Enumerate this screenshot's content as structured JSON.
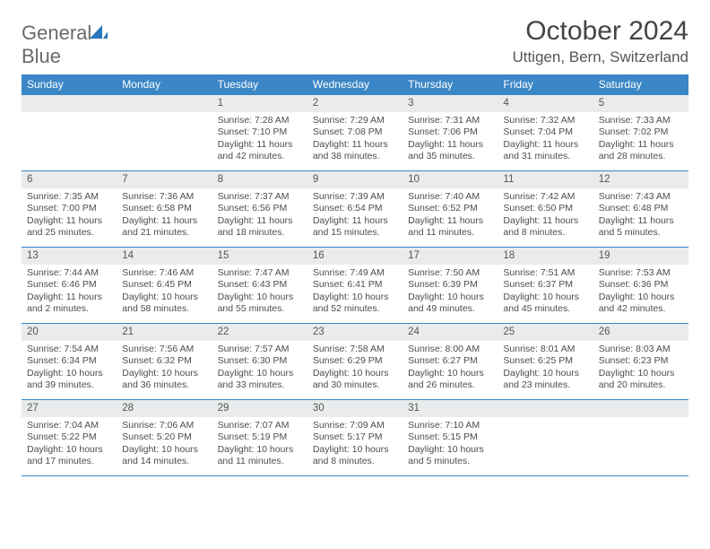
{
  "brand": {
    "part1": "General",
    "part2": "Blue"
  },
  "title": "October 2024",
  "location": "Uttigen, Bern, Switzerland",
  "colors": {
    "header_bg": "#3b86c6",
    "header_text": "#ffffff",
    "grid_line": "#3b86c6",
    "daynum_bg": "#e9ebec",
    "body_text": "#4d4d4d",
    "page_bg": "#ffffff",
    "logo_gray": "#6a6a6a",
    "logo_blue": "#2a77bb"
  },
  "dow": [
    "Sunday",
    "Monday",
    "Tuesday",
    "Wednesday",
    "Thursday",
    "Friday",
    "Saturday"
  ],
  "weeks": [
    [
      null,
      null,
      {
        "n": "1",
        "sunrise": "Sunrise: 7:28 AM",
        "sunset": "Sunset: 7:10 PM",
        "day1": "Daylight: 11 hours",
        "day2": "and 42 minutes."
      },
      {
        "n": "2",
        "sunrise": "Sunrise: 7:29 AM",
        "sunset": "Sunset: 7:08 PM",
        "day1": "Daylight: 11 hours",
        "day2": "and 38 minutes."
      },
      {
        "n": "3",
        "sunrise": "Sunrise: 7:31 AM",
        "sunset": "Sunset: 7:06 PM",
        "day1": "Daylight: 11 hours",
        "day2": "and 35 minutes."
      },
      {
        "n": "4",
        "sunrise": "Sunrise: 7:32 AM",
        "sunset": "Sunset: 7:04 PM",
        "day1": "Daylight: 11 hours",
        "day2": "and 31 minutes."
      },
      {
        "n": "5",
        "sunrise": "Sunrise: 7:33 AM",
        "sunset": "Sunset: 7:02 PM",
        "day1": "Daylight: 11 hours",
        "day2": "and 28 minutes."
      }
    ],
    [
      {
        "n": "6",
        "sunrise": "Sunrise: 7:35 AM",
        "sunset": "Sunset: 7:00 PM",
        "day1": "Daylight: 11 hours",
        "day2": "and 25 minutes."
      },
      {
        "n": "7",
        "sunrise": "Sunrise: 7:36 AM",
        "sunset": "Sunset: 6:58 PM",
        "day1": "Daylight: 11 hours",
        "day2": "and 21 minutes."
      },
      {
        "n": "8",
        "sunrise": "Sunrise: 7:37 AM",
        "sunset": "Sunset: 6:56 PM",
        "day1": "Daylight: 11 hours",
        "day2": "and 18 minutes."
      },
      {
        "n": "9",
        "sunrise": "Sunrise: 7:39 AM",
        "sunset": "Sunset: 6:54 PM",
        "day1": "Daylight: 11 hours",
        "day2": "and 15 minutes."
      },
      {
        "n": "10",
        "sunrise": "Sunrise: 7:40 AM",
        "sunset": "Sunset: 6:52 PM",
        "day1": "Daylight: 11 hours",
        "day2": "and 11 minutes."
      },
      {
        "n": "11",
        "sunrise": "Sunrise: 7:42 AM",
        "sunset": "Sunset: 6:50 PM",
        "day1": "Daylight: 11 hours",
        "day2": "and 8 minutes."
      },
      {
        "n": "12",
        "sunrise": "Sunrise: 7:43 AM",
        "sunset": "Sunset: 6:48 PM",
        "day1": "Daylight: 11 hours",
        "day2": "and 5 minutes."
      }
    ],
    [
      {
        "n": "13",
        "sunrise": "Sunrise: 7:44 AM",
        "sunset": "Sunset: 6:46 PM",
        "day1": "Daylight: 11 hours",
        "day2": "and 2 minutes."
      },
      {
        "n": "14",
        "sunrise": "Sunrise: 7:46 AM",
        "sunset": "Sunset: 6:45 PM",
        "day1": "Daylight: 10 hours",
        "day2": "and 58 minutes."
      },
      {
        "n": "15",
        "sunrise": "Sunrise: 7:47 AM",
        "sunset": "Sunset: 6:43 PM",
        "day1": "Daylight: 10 hours",
        "day2": "and 55 minutes."
      },
      {
        "n": "16",
        "sunrise": "Sunrise: 7:49 AM",
        "sunset": "Sunset: 6:41 PM",
        "day1": "Daylight: 10 hours",
        "day2": "and 52 minutes."
      },
      {
        "n": "17",
        "sunrise": "Sunrise: 7:50 AM",
        "sunset": "Sunset: 6:39 PM",
        "day1": "Daylight: 10 hours",
        "day2": "and 49 minutes."
      },
      {
        "n": "18",
        "sunrise": "Sunrise: 7:51 AM",
        "sunset": "Sunset: 6:37 PM",
        "day1": "Daylight: 10 hours",
        "day2": "and 45 minutes."
      },
      {
        "n": "19",
        "sunrise": "Sunrise: 7:53 AM",
        "sunset": "Sunset: 6:36 PM",
        "day1": "Daylight: 10 hours",
        "day2": "and 42 minutes."
      }
    ],
    [
      {
        "n": "20",
        "sunrise": "Sunrise: 7:54 AM",
        "sunset": "Sunset: 6:34 PM",
        "day1": "Daylight: 10 hours",
        "day2": "and 39 minutes."
      },
      {
        "n": "21",
        "sunrise": "Sunrise: 7:56 AM",
        "sunset": "Sunset: 6:32 PM",
        "day1": "Daylight: 10 hours",
        "day2": "and 36 minutes."
      },
      {
        "n": "22",
        "sunrise": "Sunrise: 7:57 AM",
        "sunset": "Sunset: 6:30 PM",
        "day1": "Daylight: 10 hours",
        "day2": "and 33 minutes."
      },
      {
        "n": "23",
        "sunrise": "Sunrise: 7:58 AM",
        "sunset": "Sunset: 6:29 PM",
        "day1": "Daylight: 10 hours",
        "day2": "and 30 minutes."
      },
      {
        "n": "24",
        "sunrise": "Sunrise: 8:00 AM",
        "sunset": "Sunset: 6:27 PM",
        "day1": "Daylight: 10 hours",
        "day2": "and 26 minutes."
      },
      {
        "n": "25",
        "sunrise": "Sunrise: 8:01 AM",
        "sunset": "Sunset: 6:25 PM",
        "day1": "Daylight: 10 hours",
        "day2": "and 23 minutes."
      },
      {
        "n": "26",
        "sunrise": "Sunrise: 8:03 AM",
        "sunset": "Sunset: 6:23 PM",
        "day1": "Daylight: 10 hours",
        "day2": "and 20 minutes."
      }
    ],
    [
      {
        "n": "27",
        "sunrise": "Sunrise: 7:04 AM",
        "sunset": "Sunset: 5:22 PM",
        "day1": "Daylight: 10 hours",
        "day2": "and 17 minutes."
      },
      {
        "n": "28",
        "sunrise": "Sunrise: 7:06 AM",
        "sunset": "Sunset: 5:20 PM",
        "day1": "Daylight: 10 hours",
        "day2": "and 14 minutes."
      },
      {
        "n": "29",
        "sunrise": "Sunrise: 7:07 AM",
        "sunset": "Sunset: 5:19 PM",
        "day1": "Daylight: 10 hours",
        "day2": "and 11 minutes."
      },
      {
        "n": "30",
        "sunrise": "Sunrise: 7:09 AM",
        "sunset": "Sunset: 5:17 PM",
        "day1": "Daylight: 10 hours",
        "day2": "and 8 minutes."
      },
      {
        "n": "31",
        "sunrise": "Sunrise: 7:10 AM",
        "sunset": "Sunset: 5:15 PM",
        "day1": "Daylight: 10 hours",
        "day2": "and 5 minutes."
      },
      null,
      null
    ]
  ]
}
